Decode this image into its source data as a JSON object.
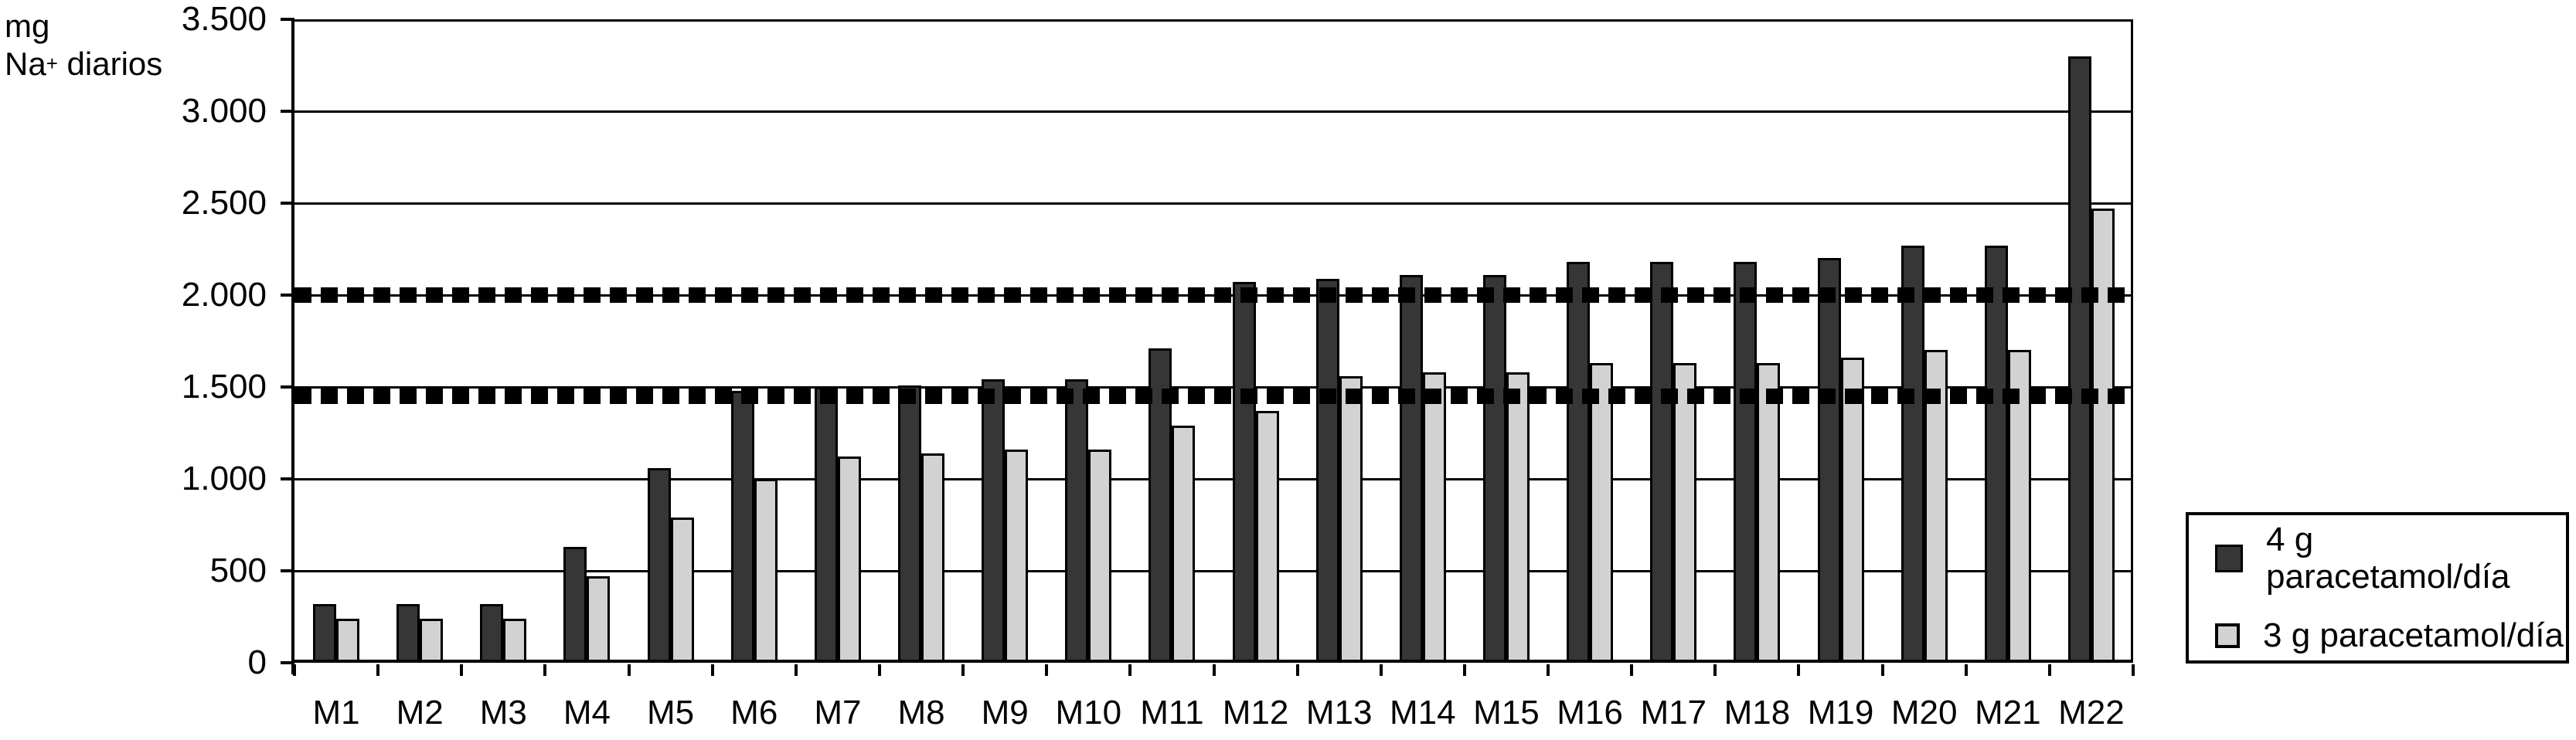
{
  "y_axis_title": {
    "line1": "mg",
    "line2_base": "Na",
    "line2_sup": "+",
    "line2_rest": " diarios"
  },
  "chart_data": {
    "type": "bar",
    "title": "",
    "ylabel": "mg Na+ diarios",
    "xlabel": "",
    "grid": true,
    "legend_position": "right",
    "ylim": [
      0,
      3500
    ],
    "y_ticks": [
      {
        "value": 3500,
        "label": "3.500"
      },
      {
        "value": 3000,
        "label": "3.000"
      },
      {
        "value": 2500,
        "label": "2.500"
      },
      {
        "value": 2000,
        "label": "2.000"
      },
      {
        "value": 1500,
        "label": "1.500"
      },
      {
        "value": 1000,
        "label": "1.000"
      },
      {
        "value": 500,
        "label": "500"
      },
      {
        "value": 0,
        "label": "0"
      }
    ],
    "categories": [
      "M1",
      "M2",
      "M3",
      "M4",
      "M5",
      "M6",
      "M7",
      "M8",
      "M9",
      "M10",
      "M11",
      "M12",
      "M13",
      "M14",
      "M15",
      "M16",
      "M17",
      "M18",
      "M19",
      "M20",
      "M21",
      "M22"
    ],
    "series": [
      {
        "name": "4 g paracetamol/día",
        "color": "#363636",
        "values": [
          320,
          320,
          320,
          630,
          1060,
          1480,
          1500,
          1510,
          1540,
          1540,
          1710,
          2070,
          2090,
          2110,
          2110,
          2180,
          2180,
          2180,
          2200,
          2270,
          2270,
          3300
        ]
      },
      {
        "name": "3 g paracetamol/día",
        "color": "#d2d2d2",
        "values": [
          240,
          240,
          240,
          470,
          790,
          1000,
          1120,
          1140,
          1160,
          1160,
          1290,
          1370,
          1560,
          1580,
          1580,
          1630,
          1630,
          1630,
          1660,
          1700,
          1700,
          2470
        ]
      }
    ],
    "reference_lines": [
      {
        "value": 2000,
        "style": "dashed"
      },
      {
        "value": 1450,
        "style": "dashed"
      }
    ]
  },
  "colors": {
    "foreground": "#000000",
    "background": "#ffffff",
    "series_4g": "#363636",
    "series_3g": "#d2d2d2"
  }
}
